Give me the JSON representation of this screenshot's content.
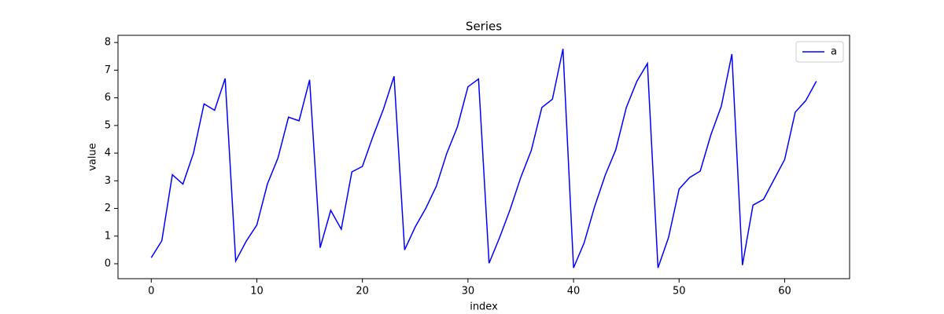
{
  "chart_data": {
    "type": "line",
    "title": "Series",
    "xlabel": "index",
    "ylabel": "value",
    "x": [
      0,
      1,
      2,
      3,
      4,
      5,
      6,
      7,
      8,
      9,
      10,
      11,
      12,
      13,
      14,
      15,
      16,
      17,
      18,
      19,
      20,
      21,
      22,
      23,
      24,
      25,
      26,
      27,
      28,
      29,
      30,
      31,
      32,
      33,
      34,
      35,
      36,
      37,
      38,
      39,
      40,
      41,
      42,
      43,
      44,
      45,
      46,
      47,
      48,
      49,
      50,
      51,
      52,
      53,
      54,
      55,
      56,
      57,
      58,
      59,
      60,
      61,
      62,
      63
    ],
    "series": [
      {
        "name": "a",
        "color": "#0000ff",
        "values": [
          0.22,
          0.83,
          3.22,
          2.88,
          4.0,
          5.78,
          5.55,
          6.7,
          0.1,
          0.82,
          1.4,
          2.88,
          3.82,
          5.3,
          5.17,
          6.65,
          0.58,
          1.93,
          1.25,
          3.32,
          3.52,
          4.6,
          5.6,
          6.78,
          0.5,
          1.33,
          2.0,
          2.8,
          4.0,
          4.95,
          6.4,
          6.68,
          0.02,
          0.95,
          1.97,
          3.12,
          4.1,
          5.65,
          5.95,
          7.77,
          -0.15,
          0.75,
          2.07,
          3.2,
          4.12,
          5.65,
          6.6,
          7.24,
          -0.15,
          0.95,
          2.7,
          3.12,
          3.35,
          4.65,
          5.7,
          7.58,
          -0.05,
          2.12,
          2.33,
          3.05,
          3.77,
          5.48,
          5.9,
          6.6
        ]
      }
    ],
    "xlim": [
      -3.15,
      66.15
    ],
    "ylim": [
      -0.54,
      8.26
    ],
    "xticks": [
      0,
      10,
      20,
      30,
      40,
      50,
      60
    ],
    "yticks": [
      0,
      1,
      2,
      3,
      4,
      5,
      6,
      7,
      8
    ],
    "legend": "upper right"
  }
}
